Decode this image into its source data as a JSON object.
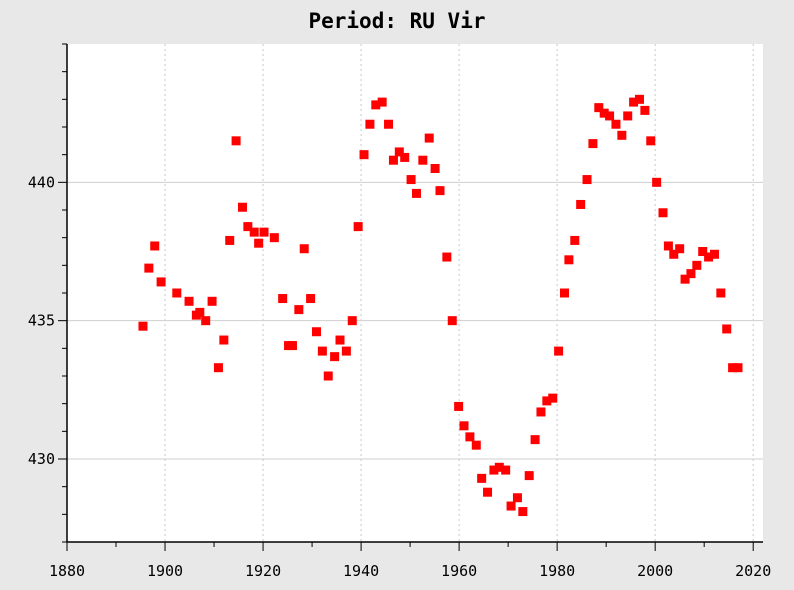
{
  "chart_data": {
    "type": "scatter",
    "title": "Period: RU Vir",
    "xlabel": "",
    "ylabel": "",
    "xlim": [
      1880,
      2022
    ],
    "ylim": [
      427,
      445
    ],
    "x_ticks": [
      1880,
      1900,
      1920,
      1940,
      1960,
      1980,
      2000,
      2020
    ],
    "y_ticks": [
      430,
      435,
      440
    ],
    "grid": true,
    "legend": "none",
    "marker_color": "#ff0000",
    "series": [
      {
        "points": [
          [
            1895.5,
            434.8
          ],
          [
            1896.7,
            436.9
          ],
          [
            1897.9,
            437.7
          ],
          [
            1899.2,
            436.4
          ],
          [
            1902.4,
            436.0
          ],
          [
            1904.9,
            435.7
          ],
          [
            1906.4,
            435.2
          ],
          [
            1907.1,
            435.3
          ],
          [
            1908.3,
            435.0
          ],
          [
            1909.6,
            435.7
          ],
          [
            1910.9,
            433.3
          ],
          [
            1912.0,
            434.3
          ],
          [
            1913.2,
            437.9
          ],
          [
            1914.5,
            441.5
          ],
          [
            1915.8,
            439.1
          ],
          [
            1916.9,
            438.4
          ],
          [
            1918.2,
            438.2
          ],
          [
            1919.1,
            437.8
          ],
          [
            1920.2,
            438.2
          ],
          [
            1922.3,
            438.0
          ],
          [
            1924.0,
            435.8
          ],
          [
            1925.2,
            434.1
          ],
          [
            1926.0,
            434.1
          ],
          [
            1927.3,
            435.4
          ],
          [
            1928.4,
            437.6
          ],
          [
            1929.7,
            435.8
          ],
          [
            1930.9,
            434.6
          ],
          [
            1932.1,
            433.9
          ],
          [
            1933.3,
            433.0
          ],
          [
            1934.6,
            433.7
          ],
          [
            1935.7,
            434.3
          ],
          [
            1937.0,
            433.9
          ],
          [
            1938.2,
            435.0
          ],
          [
            1939.4,
            438.4
          ],
          [
            1940.6,
            441.0
          ],
          [
            1941.8,
            442.1
          ],
          [
            1943.0,
            442.8
          ],
          [
            1944.3,
            442.9
          ],
          [
            1945.6,
            442.1
          ],
          [
            1946.6,
            440.8
          ],
          [
            1947.8,
            441.1
          ],
          [
            1948.9,
            440.9
          ],
          [
            1950.2,
            440.1
          ],
          [
            1951.3,
            439.6
          ],
          [
            1952.6,
            440.8
          ],
          [
            1953.9,
            441.6
          ],
          [
            1955.1,
            440.5
          ],
          [
            1956.1,
            439.7
          ],
          [
            1957.5,
            437.3
          ],
          [
            1958.6,
            435.0
          ],
          [
            1959.9,
            431.9
          ],
          [
            1961.0,
            431.2
          ],
          [
            1962.2,
            430.8
          ],
          [
            1963.5,
            430.5
          ],
          [
            1964.6,
            429.3
          ],
          [
            1965.8,
            428.8
          ],
          [
            1967.1,
            429.6
          ],
          [
            1968.2,
            429.7
          ],
          [
            1969.5,
            429.6
          ],
          [
            1970.6,
            428.3
          ],
          [
            1971.9,
            428.6
          ],
          [
            1973.0,
            428.1
          ],
          [
            1974.3,
            429.4
          ],
          [
            1975.5,
            430.7
          ],
          [
            1976.7,
            431.7
          ],
          [
            1977.9,
            432.1
          ],
          [
            1979.1,
            432.2
          ],
          [
            1980.3,
            433.9
          ],
          [
            1981.5,
            436.0
          ],
          [
            1982.4,
            437.2
          ],
          [
            1983.6,
            437.9
          ],
          [
            1984.8,
            439.2
          ],
          [
            1986.1,
            440.1
          ],
          [
            1987.3,
            441.4
          ],
          [
            1988.5,
            442.7
          ],
          [
            1989.6,
            442.5
          ],
          [
            1990.7,
            442.4
          ],
          [
            1992.0,
            442.1
          ],
          [
            1993.2,
            441.7
          ],
          [
            1994.4,
            442.4
          ],
          [
            1995.6,
            442.9
          ],
          [
            1996.8,
            443.0
          ],
          [
            1997.9,
            442.6
          ],
          [
            1999.1,
            441.5
          ],
          [
            2000.3,
            440.0
          ],
          [
            2001.6,
            438.9
          ],
          [
            2002.7,
            437.7
          ],
          [
            2003.8,
            437.4
          ],
          [
            2005.0,
            437.6
          ],
          [
            2006.1,
            436.5
          ],
          [
            2007.3,
            436.7
          ],
          [
            2008.5,
            437.0
          ],
          [
            2009.7,
            437.5
          ],
          [
            2010.9,
            437.3
          ],
          [
            2012.1,
            437.4
          ],
          [
            2013.4,
            436.0
          ],
          [
            2014.6,
            434.7
          ],
          [
            2015.8,
            433.3
          ],
          [
            2016.9,
            433.3
          ]
        ]
      }
    ]
  }
}
